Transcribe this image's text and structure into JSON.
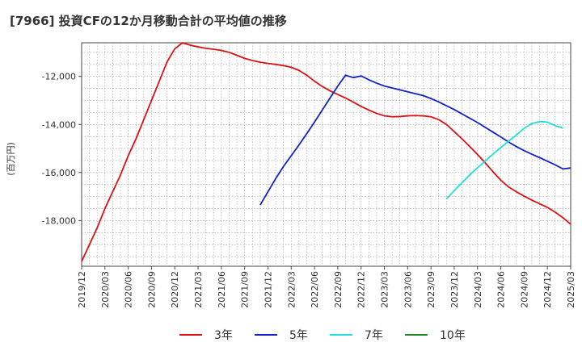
{
  "chart_data": {
    "type": "line",
    "title": "[7966]  投資CFの12か月移動合計の平均値の推移",
    "ylabel": "(百万円)",
    "xlabel": "",
    "ylim": [
      -19900,
      -10600
    ],
    "x_range": [
      "2019/12",
      "2025/03"
    ],
    "yticks": [
      -12000,
      -14000,
      -16000,
      -18000
    ],
    "ytick_labels": [
      "-12,000",
      "-14,000",
      "-16,000",
      "-18,000"
    ],
    "xticks": [
      "2019/12",
      "2020/03",
      "2020/06",
      "2020/09",
      "2020/12",
      "2021/03",
      "2021/06",
      "2021/09",
      "2021/12",
      "2022/03",
      "2022/06",
      "2022/09",
      "2022/12",
      "2023/03",
      "2023/06",
      "2023/09",
      "2023/12",
      "2024/03",
      "2024/06",
      "2024/09",
      "2024/12",
      "2025/03"
    ],
    "grid": true,
    "legend_position": "bottom",
    "series": [
      {
        "name": "3年",
        "color": "#dd1111",
        "points": [
          [
            "2019/12",
            -19700
          ],
          [
            "2020/01",
            -19000
          ],
          [
            "2020/02",
            -18300
          ],
          [
            "2020/03",
            -17500
          ],
          [
            "2020/04",
            -16800
          ],
          [
            "2020/05",
            -16100
          ],
          [
            "2020/06",
            -15300
          ],
          [
            "2020/07",
            -14600
          ],
          [
            "2020/08",
            -13800
          ],
          [
            "2020/09",
            -13000
          ],
          [
            "2020/10",
            -12200
          ],
          [
            "2020/11",
            -11400
          ],
          [
            "2020/12",
            -10850
          ],
          [
            "2021/01",
            -10600
          ],
          [
            "2021/02",
            -10700
          ],
          [
            "2021/03",
            -10770
          ],
          [
            "2021/04",
            -10830
          ],
          [
            "2021/05",
            -10870
          ],
          [
            "2021/06",
            -10920
          ],
          [
            "2021/07",
            -11000
          ],
          [
            "2021/08",
            -11120
          ],
          [
            "2021/09",
            -11250
          ],
          [
            "2021/10",
            -11340
          ],
          [
            "2021/11",
            -11410
          ],
          [
            "2021/12",
            -11460
          ],
          [
            "2022/01",
            -11500
          ],
          [
            "2022/02",
            -11550
          ],
          [
            "2022/03",
            -11620
          ],
          [
            "2022/04",
            -11750
          ],
          [
            "2022/05",
            -11950
          ],
          [
            "2022/06",
            -12200
          ],
          [
            "2022/07",
            -12420
          ],
          [
            "2022/08",
            -12600
          ],
          [
            "2022/09",
            -12750
          ],
          [
            "2022/10",
            -12900
          ],
          [
            "2022/11",
            -13070
          ],
          [
            "2022/12",
            -13250
          ],
          [
            "2023/01",
            -13400
          ],
          [
            "2023/02",
            -13540
          ],
          [
            "2023/03",
            -13640
          ],
          [
            "2023/04",
            -13680
          ],
          [
            "2023/05",
            -13670
          ],
          [
            "2023/06",
            -13640
          ],
          [
            "2023/07",
            -13630
          ],
          [
            "2023/08",
            -13640
          ],
          [
            "2023/09",
            -13680
          ],
          [
            "2023/10",
            -13800
          ],
          [
            "2023/11",
            -14000
          ],
          [
            "2023/12",
            -14300
          ],
          [
            "2024/01",
            -14600
          ],
          [
            "2024/02",
            -14920
          ],
          [
            "2024/03",
            -15250
          ],
          [
            "2024/04",
            -15600
          ],
          [
            "2024/05",
            -15970
          ],
          [
            "2024/06",
            -16320
          ],
          [
            "2024/07",
            -16600
          ],
          [
            "2024/08",
            -16800
          ],
          [
            "2024/09",
            -16980
          ],
          [
            "2024/10",
            -17150
          ],
          [
            "2024/11",
            -17300
          ],
          [
            "2024/12",
            -17450
          ],
          [
            "2025/01",
            -17650
          ],
          [
            "2025/02",
            -17880
          ],
          [
            "2025/03",
            -18150
          ]
        ]
      },
      {
        "name": "5年",
        "color": "#1122cc",
        "points": [
          [
            "2021/11",
            -17350
          ],
          [
            "2021/12",
            -16800
          ],
          [
            "2022/01",
            -16250
          ],
          [
            "2022/02",
            -15750
          ],
          [
            "2022/03",
            -15300
          ],
          [
            "2022/04",
            -14850
          ],
          [
            "2022/05",
            -14380
          ],
          [
            "2022/06",
            -13900
          ],
          [
            "2022/07",
            -13400
          ],
          [
            "2022/08",
            -12900
          ],
          [
            "2022/09",
            -12400
          ],
          [
            "2022/10",
            -11950
          ],
          [
            "2022/11",
            -12050
          ],
          [
            "2022/12",
            -11980
          ],
          [
            "2023/01",
            -12140
          ],
          [
            "2023/02",
            -12280
          ],
          [
            "2023/03",
            -12400
          ],
          [
            "2023/04",
            -12480
          ],
          [
            "2023/05",
            -12560
          ],
          [
            "2023/06",
            -12640
          ],
          [
            "2023/07",
            -12720
          ],
          [
            "2023/08",
            -12800
          ],
          [
            "2023/09",
            -12920
          ],
          [
            "2023/10",
            -13060
          ],
          [
            "2023/11",
            -13220
          ],
          [
            "2023/12",
            -13380
          ],
          [
            "2024/01",
            -13560
          ],
          [
            "2024/02",
            -13740
          ],
          [
            "2024/03",
            -13920
          ],
          [
            "2024/04",
            -14120
          ],
          [
            "2024/05",
            -14320
          ],
          [
            "2024/06",
            -14520
          ],
          [
            "2024/07",
            -14730
          ],
          [
            "2024/08",
            -14920
          ],
          [
            "2024/09",
            -15090
          ],
          [
            "2024/10",
            -15240
          ],
          [
            "2024/11",
            -15380
          ],
          [
            "2024/12",
            -15530
          ],
          [
            "2025/01",
            -15680
          ],
          [
            "2025/02",
            -15850
          ],
          [
            "2025/03",
            -15810
          ]
        ]
      },
      {
        "name": "7年",
        "color": "#22dddd",
        "points": [
          [
            "2023/11",
            -17100
          ],
          [
            "2023/12",
            -16750
          ],
          [
            "2024/01",
            -16420
          ],
          [
            "2024/02",
            -16100
          ],
          [
            "2024/03",
            -15800
          ],
          [
            "2024/04",
            -15520
          ],
          [
            "2024/05",
            -15230
          ],
          [
            "2024/06",
            -14960
          ],
          [
            "2024/07",
            -14700
          ],
          [
            "2024/08",
            -14440
          ],
          [
            "2024/09",
            -14160
          ],
          [
            "2024/10",
            -13960
          ],
          [
            "2024/11",
            -13880
          ],
          [
            "2024/12",
            -13900
          ],
          [
            "2025/01",
            -14050
          ],
          [
            "2025/02",
            -14150
          ]
        ]
      },
      {
        "name": "10年",
        "color": "#228822",
        "points": []
      }
    ]
  }
}
